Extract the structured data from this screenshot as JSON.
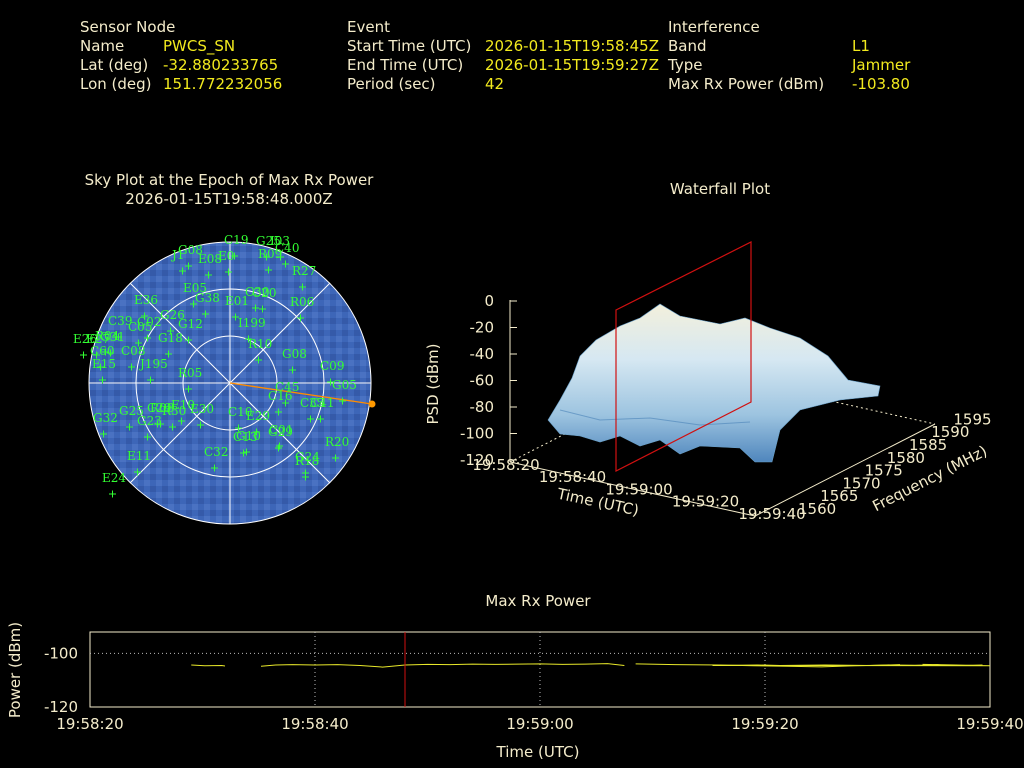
{
  "header": {
    "sensor": {
      "heading": "Sensor Node",
      "name_label": "Name",
      "name": "PWCS_SN",
      "lat_label": "Lat (deg)",
      "lat": "-32.880233765",
      "lon_label": "Lon (deg)",
      "lon": "151.772232056"
    },
    "event": {
      "heading": "Event",
      "start_label": "Start Time (UTC)",
      "start": "2026-01-15T19:58:45Z",
      "end_label": "End Time (UTC)",
      "end": "2026-01-15T19:59:27Z",
      "period_label": "Period (sec)",
      "period": "42"
    },
    "interference": {
      "heading": "Interference",
      "band_label": "Band",
      "band": "L1",
      "type_label": "Type",
      "type": "Jammer",
      "power_label": "Max Rx Power (dBm)",
      "power": "-103.80"
    }
  },
  "skyplot": {
    "title": "Sky Plot at the Epoch of Max Rx Power",
    "subtitle": "2026-01-15T19:58:48.000Z",
    "satellites": [
      "C19",
      "G25",
      "I03",
      "G08",
      "J1",
      "E08",
      "E0",
      "R09",
      "C40",
      "R27",
      "R06",
      "C30",
      "E05",
      "G38",
      "C20",
      "E36",
      "G26",
      "E01",
      "C39",
      "C05",
      "I199",
      "C02",
      "G12",
      "G18",
      "C08",
      "R10",
      "G08",
      "J195",
      "C09",
      "G05",
      "E15",
      "C45",
      "R05",
      "E30",
      "E29",
      "G32",
      "G25",
      "C29",
      "R30",
      "G23",
      "C10",
      "C13",
      "C16",
      "G29",
      "C41",
      "R20",
      "G24",
      "E11",
      "C32",
      "R18",
      "E24",
      "E26",
      "E27",
      "R04",
      "G31",
      "C60",
      "R08",
      "C35",
      "G10",
      "C01",
      "E10"
    ],
    "interferer_label": ""
  },
  "waterfall": {
    "title": "Waterfall Plot",
    "zlabel": "PSD (dBm)",
    "zticks": [
      "0",
      "-20",
      "-40",
      "-60",
      "-80",
      "-100",
      "-120"
    ],
    "xlabel": "Time (UTC)",
    "xticks": [
      "19:58:20",
      "19:58:40",
      "19:59:00",
      "19:59:20",
      "19:59:40"
    ],
    "ylabel": "Frequency (MHz)",
    "yticks": [
      "1560",
      "1565",
      "1570",
      "1575",
      "1580",
      "1585",
      "1590",
      "1595"
    ]
  },
  "chart_data": {
    "type": "line",
    "title": "Max Rx Power",
    "xlabel": "Time (UTC)",
    "ylabel": "Power (dBm)",
    "xticks": [
      "19:58:20",
      "19:58:40",
      "19:59:00",
      "19:59:20",
      "19:59:40"
    ],
    "yticks": [
      "-100",
      "-120"
    ],
    "xlim": [
      0,
      80
    ],
    "ylim": [
      -120,
      -92
    ],
    "grid": true,
    "marker_time": "19:58:48",
    "segments": [
      {
        "x": [
          9.0,
          10.2,
          11.7,
          12.0
        ],
        "y": [
          -104.3,
          -104.6,
          -104.5,
          -104.7
        ]
      },
      {
        "x": [
          15.2,
          16.5,
          18,
          20,
          22,
          24,
          26,
          28,
          30,
          32,
          34,
          36,
          38,
          40,
          42,
          44,
          46,
          47.5
        ],
        "y": [
          -104.8,
          -104.3,
          -104.2,
          -104.3,
          -104.2,
          -104.5,
          -105.1,
          -104.3,
          -104.1,
          -104.2,
          -104.0,
          -104.1,
          -104.0,
          -103.9,
          -104.1,
          -104.0,
          -103.8,
          -104.5
        ]
      },
      {
        "x": [
          48.5,
          52,
          56,
          59,
          62,
          65,
          68,
          70,
          72
        ],
        "y": [
          -103.9,
          -104.2,
          -104.3,
          -104.6,
          -104.8,
          -105.0,
          -104.6,
          -104.4,
          -104.2
        ]
      },
      {
        "x": [
          74,
          77,
          80,
          83,
          86,
          89,
          92,
          95,
          98,
          101,
          104,
          107,
          110,
          113,
          116,
          119
        ],
        "y": [
          -104.1,
          -104.3,
          -104.6,
          -104.5,
          -104.4,
          -104.3,
          -104.5,
          -104.4,
          -104.3,
          -104.4,
          -104.5,
          -104.3,
          -104.4,
          -104.2,
          -104.5,
          -104.3
        ]
      }
    ]
  }
}
